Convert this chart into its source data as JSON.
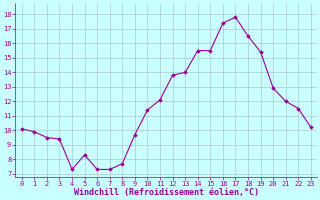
{
  "x": [
    0,
    1,
    2,
    3,
    4,
    5,
    6,
    7,
    8,
    9,
    10,
    11,
    12,
    13,
    14,
    15,
    16,
    17,
    18,
    19,
    20,
    21,
    22,
    23
  ],
  "y": [
    10.1,
    9.9,
    9.5,
    9.4,
    7.3,
    8.3,
    7.3,
    7.3,
    7.7,
    9.7,
    11.4,
    12.1,
    13.8,
    14.0,
    15.5,
    15.5,
    17.4,
    17.8,
    16.5,
    15.4,
    12.9,
    12.0,
    11.5,
    10.2
  ],
  "line_color": "#990099",
  "marker": "D",
  "marker_size": 1.8,
  "bg_color": "#caffff",
  "grid_color": "#b0c8c8",
  "xlabel": "Windchill (Refroidissement éolien,°C)",
  "xlabel_color": "#990099",
  "ylabel_ticks": [
    7,
    8,
    9,
    10,
    11,
    12,
    13,
    14,
    15,
    16,
    17,
    18
  ],
  "xticks": [
    0,
    1,
    2,
    3,
    4,
    5,
    6,
    7,
    8,
    9,
    10,
    11,
    12,
    13,
    14,
    15,
    16,
    17,
    18,
    19,
    20,
    21,
    22,
    23
  ],
  "ylim": [
    6.8,
    18.8
  ],
  "xlim": [
    -0.5,
    23.5
  ],
  "tick_color": "#990099",
  "tick_fontsize": 5.0,
  "xlabel_fontsize": 6.0,
  "linewidth": 0.8
}
